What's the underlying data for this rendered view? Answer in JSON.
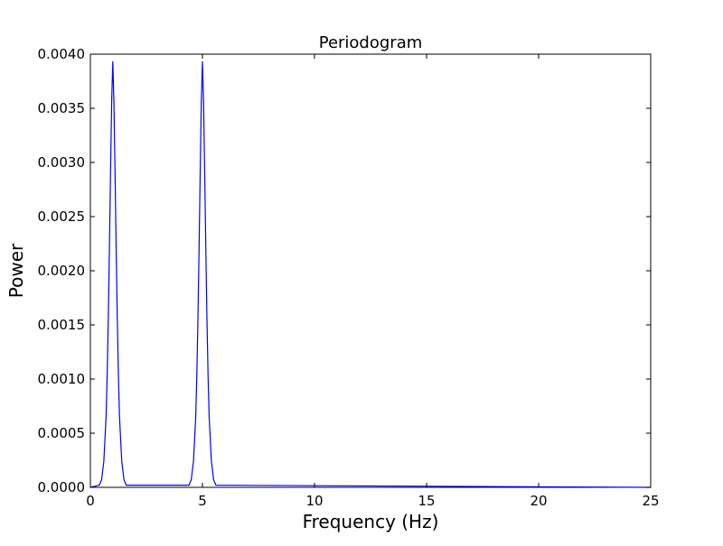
{
  "chart_data": {
    "type": "line",
    "title": "Periodogram",
    "xlabel": "Frequency (Hz)",
    "ylabel": "Power",
    "xlim": [
      0,
      25
    ],
    "ylim": [
      0,
      0.004
    ],
    "grid": false,
    "x_ticks": [
      0,
      5,
      10,
      15,
      20,
      25
    ],
    "x_tick_labels": [
      "0",
      "5",
      "10",
      "15",
      "20",
      "25"
    ],
    "y_ticks": [
      0,
      0.0005,
      0.001,
      0.0015,
      0.002,
      0.0025,
      0.003,
      0.0035,
      0.004
    ],
    "y_tick_labels": [
      "0.0000",
      "0.0005",
      "0.0010",
      "0.0015",
      "0.0020",
      "0.0025",
      "0.0030",
      "0.0035",
      "0.0040"
    ],
    "series": [
      {
        "color": "#0000ff",
        "x": [
          0,
          0.4,
          0.5,
          0.6,
          0.7,
          0.75,
          0.8,
          0.85,
          0.9,
          0.95,
          1.0,
          1.05,
          1.1,
          1.15,
          1.2,
          1.25,
          1.3,
          1.4,
          1.5,
          1.6,
          4.4,
          4.5,
          4.6,
          4.7,
          4.75,
          4.8,
          4.85,
          4.9,
          4.95,
          5.0,
          5.05,
          5.1,
          5.15,
          5.2,
          5.25,
          5.3,
          5.4,
          5.5,
          5.6,
          25
        ],
        "y": [
          0,
          2e-05,
          7e-05,
          0.00024,
          0.00065,
          0.00104,
          0.00157,
          0.00221,
          0.00291,
          0.00356,
          0.00393,
          0.00356,
          0.00291,
          0.00221,
          0.00157,
          0.00104,
          0.00065,
          0.00024,
          7e-05,
          2e-05,
          2e-05,
          7e-05,
          0.00024,
          0.00065,
          0.00104,
          0.00157,
          0.00221,
          0.00291,
          0.00356,
          0.00393,
          0.00356,
          0.00291,
          0.00221,
          0.00157,
          0.00104,
          0.00065,
          0.00024,
          7e-05,
          2e-05,
          0
        ]
      }
    ]
  }
}
